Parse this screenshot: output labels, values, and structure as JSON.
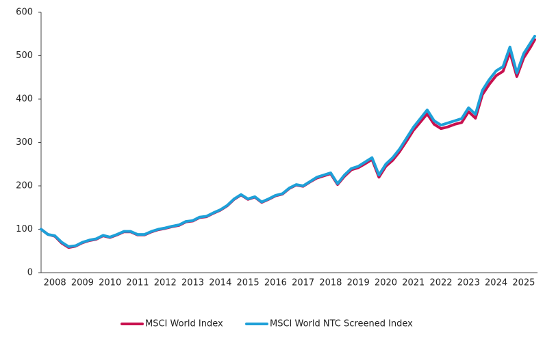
{
  "chart_data": {
    "type": "line",
    "x": [
      2008.0,
      2008.25,
      2008.5,
      2008.75,
      2009.0,
      2009.25,
      2009.5,
      2009.75,
      2010.0,
      2010.25,
      2010.5,
      2010.75,
      2011.0,
      2011.25,
      2011.5,
      2011.75,
      2012.0,
      2012.25,
      2012.5,
      2012.75,
      2013.0,
      2013.25,
      2013.5,
      2013.75,
      2014.0,
      2014.25,
      2014.5,
      2014.75,
      2015.0,
      2015.25,
      2015.5,
      2015.75,
      2016.0,
      2016.25,
      2016.5,
      2016.75,
      2017.0,
      2017.25,
      2017.5,
      2017.75,
      2018.0,
      2018.25,
      2018.5,
      2018.75,
      2019.0,
      2019.25,
      2019.5,
      2019.75,
      2020.0,
      2020.25,
      2020.5,
      2020.75,
      2021.0,
      2021.25,
      2021.5,
      2021.75,
      2022.0,
      2022.25,
      2022.5,
      2022.75,
      2023.0,
      2023.25,
      2023.5,
      2023.75,
      2024.0,
      2024.25,
      2024.5,
      2024.75,
      2025.0,
      2025.25,
      2025.5,
      2025.75,
      2025.9
    ],
    "series": [
      {
        "name": "MSCI World Index",
        "color": "#c8104e",
        "values": [
          100,
          88,
          84,
          68,
          58,
          61,
          69,
          74,
          77,
          85,
          81,
          87,
          94,
          94,
          87,
          87,
          94,
          99,
          102,
          106,
          109,
          117,
          119,
          127,
          129,
          137,
          144,
          154,
          169,
          179,
          169,
          174,
          162,
          169,
          177,
          181,
          194,
          202,
          199,
          209,
          218,
          223,
          228,
          203,
          222,
          237,
          242,
          251,
          261,
          220,
          245,
          259,
          279,
          303,
          328,
          347,
          366,
          342,
          332,
          336,
          342,
          346,
          371,
          356,
          410,
          434,
          454,
          464,
          508,
          452,
          495,
          520,
          537
        ]
      },
      {
        "name": "MSCI World NTC Screened Index",
        "color": "#1ea0d8",
        "values": [
          100,
          88,
          85,
          70,
          60,
          62,
          70,
          75,
          78,
          86,
          82,
          88,
          95,
          95,
          88,
          88,
          95,
          100,
          103,
          107,
          110,
          118,
          120,
          128,
          130,
          138,
          145,
          155,
          170,
          180,
          170,
          175,
          163,
          170,
          178,
          182,
          195,
          203,
          200,
          210,
          220,
          225,
          230,
          205,
          225,
          240,
          245,
          255,
          265,
          225,
          250,
          265,
          285,
          310,
          335,
          355,
          375,
          350,
          340,
          345,
          350,
          355,
          380,
          365,
          420,
          445,
          465,
          475,
          520,
          460,
          505,
          530,
          545
        ]
      }
    ],
    "xlim": [
      2008,
      2026
    ],
    "xticks": [
      {
        "value": 2008.5,
        "label": "2008"
      },
      {
        "value": 2009.5,
        "label": "2009"
      },
      {
        "value": 2010.5,
        "label": "2010"
      },
      {
        "value": 2011.5,
        "label": "2011"
      },
      {
        "value": 2012.5,
        "label": "2012"
      },
      {
        "value": 2013.5,
        "label": "2013"
      },
      {
        "value": 2014.5,
        "label": "2014"
      },
      {
        "value": 2015.5,
        "label": "2015"
      },
      {
        "value": 2016.5,
        "label": "2016"
      },
      {
        "value": 2017.5,
        "label": "2017"
      },
      {
        "value": 2018.5,
        "label": "2018"
      },
      {
        "value": 2019.5,
        "label": "2019"
      },
      {
        "value": 2020.5,
        "label": "2020"
      },
      {
        "value": 2021.5,
        "label": "2021"
      },
      {
        "value": 2022.5,
        "label": "2022"
      },
      {
        "value": 2023.5,
        "label": "2023"
      },
      {
        "value": 2024.5,
        "label": "2024"
      },
      {
        "value": 2025.5,
        "label": "2025"
      }
    ],
    "ylim": [
      0,
      600
    ],
    "yticks": [
      0,
      100,
      200,
      300,
      400,
      500,
      600
    ],
    "legend": "bottom"
  }
}
